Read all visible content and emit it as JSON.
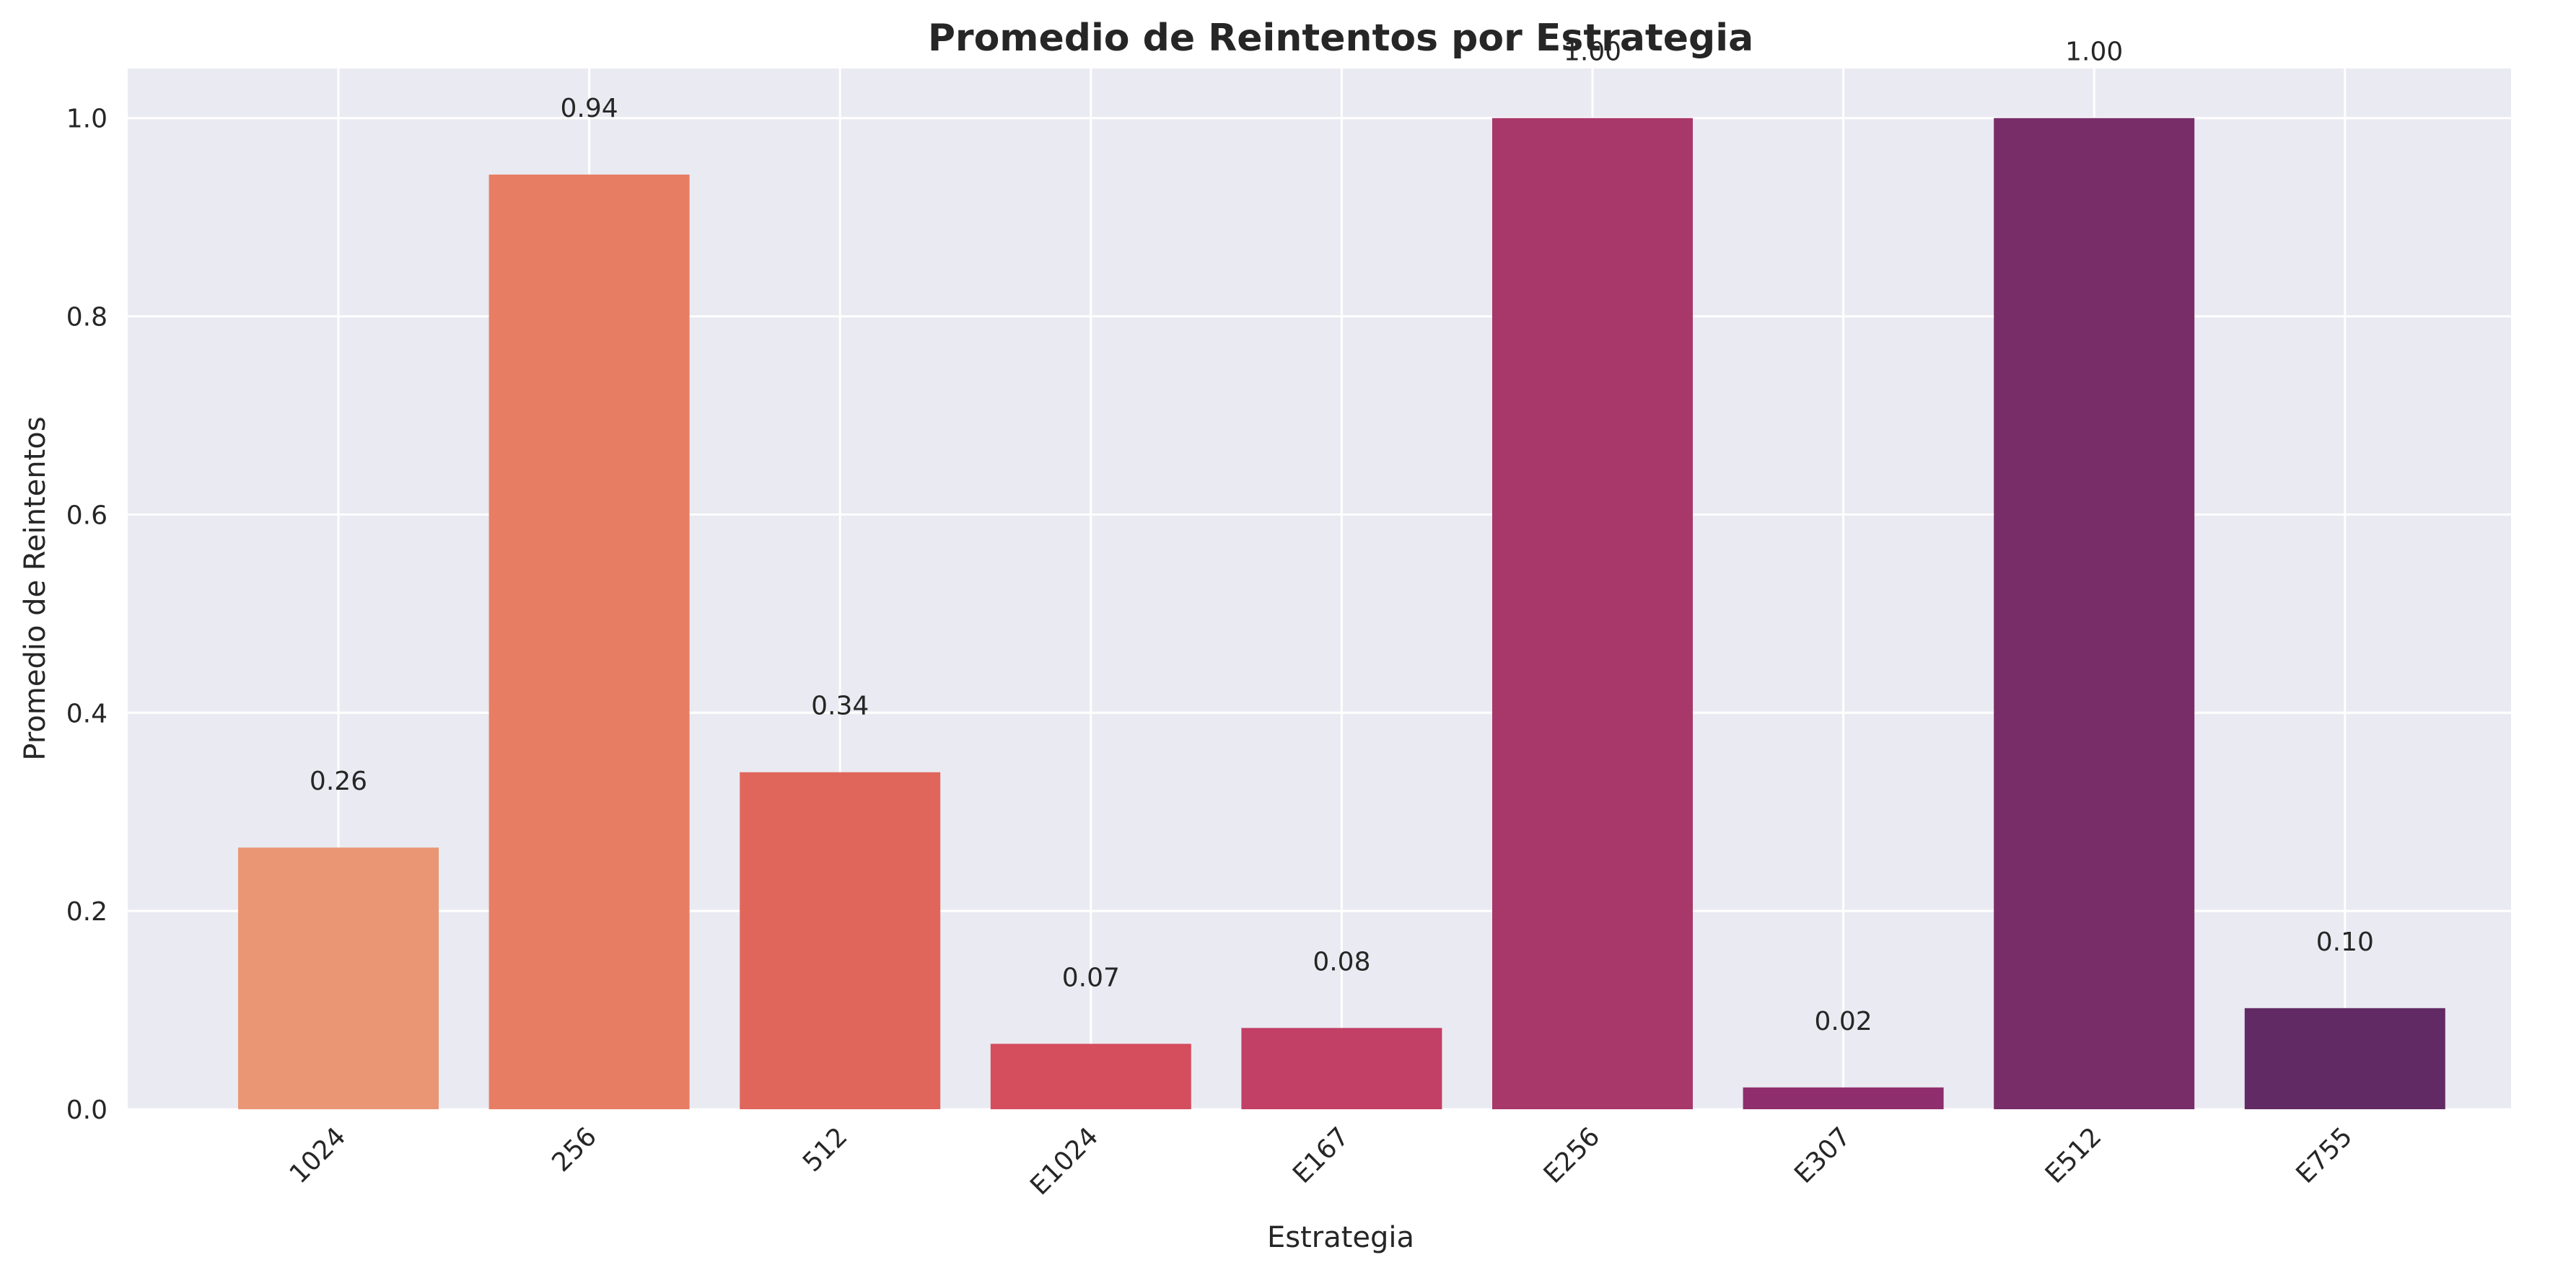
{
  "chart_data": {
    "type": "bar",
    "title": "Promedio de Reintentos por Estrategia",
    "xlabel": "Estrategia",
    "ylabel": "Promedio de Reintentos",
    "categories": [
      "1024",
      "256",
      "512",
      "E1024",
      "E167",
      "E256",
      "E307",
      "E512",
      "E755"
    ],
    "values": [
      0.264,
      0.943,
      0.34,
      0.066,
      0.082,
      1.0,
      0.022,
      1.0,
      0.102
    ],
    "value_labels": [
      "0.26",
      "0.94",
      "0.34",
      "0.07",
      "0.08",
      "1.00",
      "0.02",
      "1.00",
      "0.10"
    ],
    "ylim": [
      0,
      1.05
    ],
    "yticks": [
      0.0,
      0.2,
      0.4,
      0.6,
      0.8,
      1.0
    ],
    "ytick_labels": [
      "0.0",
      "0.2",
      "0.4",
      "0.6",
      "0.8",
      "1.0"
    ],
    "grid": true,
    "colors": [
      "#EA9674",
      "#E77E64",
      "#E0665C",
      "#D44E5E",
      "#C23F65",
      "#A8376A",
      "#8E2E6C",
      "#782D69",
      "#622A64"
    ],
    "background_color": "#EAEAF2",
    "grid_color": "#FFFFFF"
  }
}
